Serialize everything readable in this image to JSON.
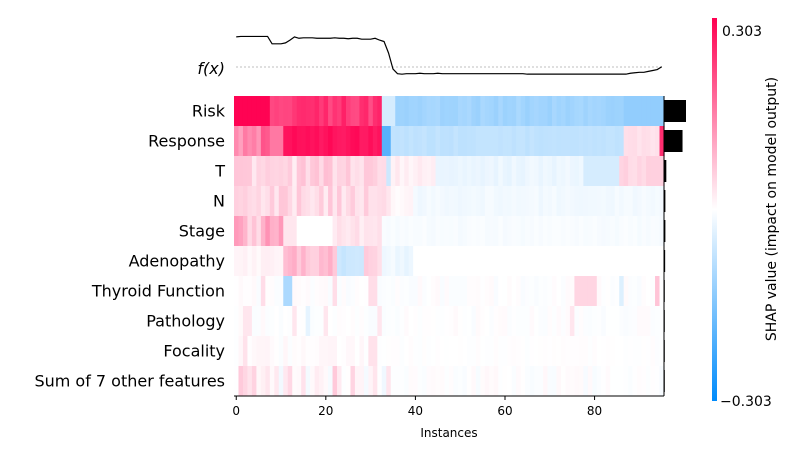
{
  "chart_data": {
    "type": "heatmap",
    "title": "",
    "xlabel": "Instances",
    "colorbar_label": "SHAP value (impact on model output)",
    "colorbar_max_label": "0.303",
    "colorbar_min_label": "−0.303",
    "vmin": -0.303,
    "vmax": 0.303,
    "fx_label": "f(x)",
    "xlim": [
      -0.5,
      95.5
    ],
    "n_instances": 96,
    "x_ticks": [
      0,
      20,
      40,
      60,
      80
    ],
    "x_tick_labels": [
      "0",
      "20",
      "40",
      "60",
      "80"
    ],
    "colors": {
      "positive": "#ff0051",
      "negative": "#008bfb",
      "neutral": "#ffffff",
      "bar": "#000000",
      "line": "#000000"
    },
    "features": [
      "Risk",
      "Response",
      "T",
      "N",
      "Stage",
      "Adenopathy",
      "Thyroid Function",
      "Pathology",
      "Focality",
      "Sum of 7 other features"
    ],
    "feature_importance": [
      0.095,
      0.08,
      0.01,
      0.006,
      0.006,
      0.005,
      0.002,
      0.002,
      0.001,
      0.002
    ],
    "fx": [
      0.85,
      0.86,
      0.86,
      0.86,
      0.86,
      0.86,
      0.86,
      0.86,
      0.7,
      0.7,
      0.7,
      0.72,
      0.78,
      0.85,
      0.82,
      0.83,
      0.83,
      0.83,
      0.82,
      0.82,
      0.82,
      0.82,
      0.83,
      0.82,
      0.82,
      0.81,
      0.82,
      0.82,
      0.8,
      0.8,
      0.8,
      0.82,
      0.78,
      0.75,
      0.5,
      0.15,
      0.05,
      0.04,
      0.05,
      0.05,
      0.05,
      0.06,
      0.05,
      0.05,
      0.05,
      0.06,
      0.05,
      0.05,
      0.05,
      0.05,
      0.05,
      0.05,
      0.05,
      0.05,
      0.05,
      0.05,
      0.05,
      0.05,
      0.05,
      0.05,
      0.05,
      0.05,
      0.05,
      0.05,
      0.05,
      0.04,
      0.04,
      0.04,
      0.04,
      0.04,
      0.04,
      0.04,
      0.04,
      0.04,
      0.04,
      0.04,
      0.04,
      0.04,
      0.04,
      0.04,
      0.04,
      0.04,
      0.04,
      0.04,
      0.04,
      0.04,
      0.04,
      0.04,
      0.06,
      0.07,
      0.08,
      0.08,
      0.1,
      0.12,
      0.14,
      0.2
    ],
    "fx_baseline": 0.5
  }
}
